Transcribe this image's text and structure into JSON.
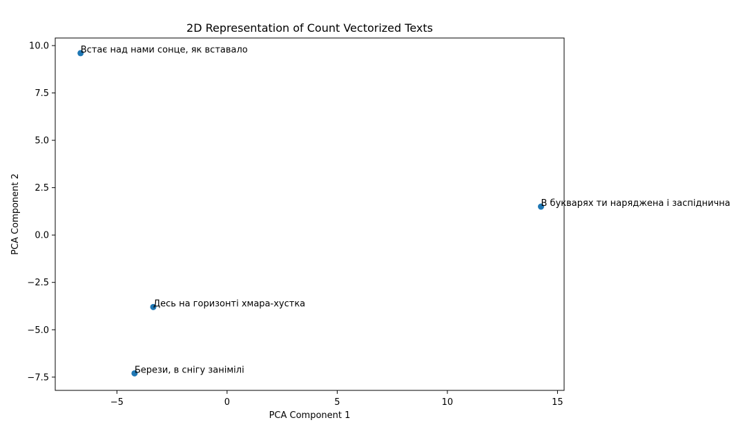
{
  "chart_data": {
    "type": "scatter",
    "title": "2D Representation of Count Vectorized Texts",
    "xlabel": "PCA Component 1",
    "ylabel": "PCA Component 2",
    "xlim": [
      -7.8,
      15.3
    ],
    "ylim": [
      -8.2,
      10.4
    ],
    "xticks": [
      -5,
      0,
      5,
      10,
      15
    ],
    "yticks": [
      -7.5,
      -5.0,
      -2.5,
      0.0,
      2.5,
      5.0,
      7.5,
      10.0
    ],
    "xtick_labels": [
      "−5",
      "0",
      "5",
      "10",
      "15"
    ],
    "ytick_labels": [
      "−7.5",
      "−5.0",
      "−2.5",
      "0.0",
      "2.5",
      "5.0",
      "7.5",
      "10.0"
    ],
    "grid": false,
    "marker_color": "#1f77b4",
    "points": [
      {
        "x": -6.65,
        "y": 9.6,
        "label": "Встає над нами сонце, як вставало"
      },
      {
        "x": 14.25,
        "y": 1.5,
        "label": "В букварях ти наряджена і заспіднична"
      },
      {
        "x": -3.35,
        "y": -3.8,
        "label": "Десь на горизонті хмара-хустка"
      },
      {
        "x": -4.2,
        "y": -7.3,
        "label": "Берези, в снігу занімілі"
      }
    ]
  }
}
